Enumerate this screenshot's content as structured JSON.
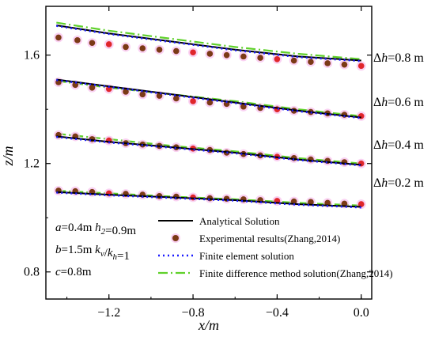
{
  "chart_data": {
    "type": "line",
    "xlabel": "x/m",
    "ylabel": "z/m",
    "xlim": [
      -1.5,
      0.05
    ],
    "ylim": [
      0.7,
      1.78
    ],
    "x_ticks": [
      -1.2,
      -0.8,
      -0.4,
      0.0
    ],
    "x_tick_labels": [
      "−1.2",
      "−0.8",
      "−0.4",
      "0.0"
    ],
    "y_ticks": [
      0.8,
      1.2,
      1.6
    ],
    "y_tick_labels": [
      "0.8",
      "1.2",
      "1.6"
    ],
    "curve_labels": [
      "Δh=0.8 m",
      "Δh=0.6 m",
      "Δh=0.4 m",
      "Δh=0.2 m"
    ],
    "params": [
      "a=0.4m  h2=0.9m",
      "b=1.5m  kv/kh=1",
      "c=0.8m"
    ],
    "legend_position": "bottom-right",
    "series": [
      {
        "name": "Analytical Solution",
        "style": "solid",
        "color": "#000000",
        "curves": [
          {
            "x": [
              -1.45,
              -1.2,
              -0.9,
              -0.6,
              -0.3,
              0.0
            ],
            "y": [
              1.71,
              1.68,
              1.65,
              1.62,
              1.595,
              1.58
            ]
          },
          {
            "x": [
              -1.45,
              -1.2,
              -0.9,
              -0.6,
              -0.3,
              0.0
            ],
            "y": [
              1.51,
              1.485,
              1.455,
              1.425,
              1.395,
              1.37
            ]
          },
          {
            "x": [
              -1.45,
              -1.2,
              -0.9,
              -0.6,
              -0.3,
              0.0
            ],
            "y": [
              1.3,
              1.28,
              1.26,
              1.24,
              1.215,
              1.195
            ]
          },
          {
            "x": [
              -1.45,
              -1.2,
              -0.9,
              -0.6,
              -0.3,
              0.0
            ],
            "y": [
              1.095,
              1.085,
              1.075,
              1.065,
              1.05,
              1.04
            ]
          }
        ]
      },
      {
        "name": "Experimental results(Zhang,2014)",
        "style": "markers",
        "color": "#7b3a16",
        "curves": [
          {
            "x": [
              -1.44,
              -1.35,
              -1.28,
              -1.2,
              -1.12,
              -1.04,
              -0.96,
              -0.88,
              -0.8,
              -0.72,
              -0.64,
              -0.56,
              -0.48,
              -0.4,
              -0.32,
              -0.24,
              -0.16,
              -0.08,
              0.0
            ],
            "y": [
              1.665,
              1.655,
              1.645,
              1.64,
              1.63,
              1.625,
              1.62,
              1.615,
              1.61,
              1.605,
              1.6,
              1.595,
              1.59,
              1.585,
              1.58,
              1.575,
              1.57,
              1.565,
              1.56
            ]
          },
          {
            "x": [
              -1.44,
              -1.36,
              -1.28,
              -1.2,
              -1.12,
              -1.04,
              -0.96,
              -0.88,
              -0.8,
              -0.72,
              -0.64,
              -0.56,
              -0.48,
              -0.4,
              -0.32,
              -0.24,
              -0.16,
              -0.08,
              0.0
            ],
            "y": [
              1.5,
              1.49,
              1.48,
              1.475,
              1.465,
              1.455,
              1.45,
              1.44,
              1.43,
              1.425,
              1.42,
              1.41,
              1.405,
              1.4,
              1.395,
              1.39,
              1.385,
              1.38,
              1.375
            ]
          },
          {
            "x": [
              -1.44,
              -1.36,
              -1.28,
              -1.2,
              -1.12,
              -1.04,
              -0.96,
              -0.88,
              -0.8,
              -0.72,
              -0.64,
              -0.56,
              -0.48,
              -0.4,
              -0.32,
              -0.24,
              -0.16,
              -0.08,
              0.0
            ],
            "y": [
              1.305,
              1.3,
              1.29,
              1.285,
              1.275,
              1.27,
              1.265,
              1.26,
              1.255,
              1.25,
              1.24,
              1.235,
              1.23,
              1.225,
              1.22,
              1.215,
              1.21,
              1.205,
              1.2
            ]
          },
          {
            "x": [
              -1.44,
              -1.36,
              -1.28,
              -1.2,
              -1.12,
              -1.04,
              -0.96,
              -0.88,
              -0.8,
              -0.72,
              -0.64,
              -0.56,
              -0.48,
              -0.4,
              -0.32,
              -0.24,
              -0.16,
              -0.08,
              0.0
            ],
            "y": [
              1.1,
              1.098,
              1.095,
              1.09,
              1.088,
              1.085,
              1.08,
              1.078,
              1.075,
              1.072,
              1.07,
              1.068,
              1.065,
              1.062,
              1.06,
              1.058,
              1.055,
              1.052,
              1.05
            ]
          }
        ]
      },
      {
        "name": "Finite element solution",
        "style": "dotted",
        "color": "#1a1aff",
        "curves": [
          {
            "x": [
              -1.45,
              -1.2,
              -0.9,
              -0.6,
              -0.3,
              0.0
            ],
            "y": [
              1.708,
              1.678,
              1.648,
              1.618,
              1.593,
              1.578
            ]
          },
          {
            "x": [
              -1.45,
              -1.2,
              -0.9,
              -0.6,
              -0.3,
              0.0
            ],
            "y": [
              1.508,
              1.483,
              1.453,
              1.423,
              1.393,
              1.368
            ]
          },
          {
            "x": [
              -1.45,
              -1.2,
              -0.9,
              -0.6,
              -0.3,
              0.0
            ],
            "y": [
              1.298,
              1.278,
              1.258,
              1.238,
              1.213,
              1.193
            ]
          },
          {
            "x": [
              -1.45,
              -1.2,
              -0.9,
              -0.6,
              -0.3,
              0.0
            ],
            "y": [
              1.093,
              1.083,
              1.073,
              1.063,
              1.048,
              1.038
            ]
          }
        ]
      },
      {
        "name": "Finite difference method solution(Zhang,2014)",
        "style": "dashdot",
        "color": "#5fd12a",
        "curves": [
          {
            "x": [
              -1.45,
              -1.2,
              -0.9,
              -0.6,
              -0.3,
              0.0
            ],
            "y": [
              1.72,
              1.69,
              1.66,
              1.63,
              1.605,
              1.585
            ]
          },
          {
            "x": [
              -1.45,
              -1.2,
              -0.9,
              -0.6,
              -0.3,
              0.0
            ],
            "y": [
              1.505,
              1.48,
              1.455,
              1.43,
              1.4,
              1.375
            ]
          },
          {
            "x": [
              -1.45,
              -1.2,
              -0.9,
              -0.6,
              -0.3,
              0.0
            ],
            "y": [
              1.31,
              1.29,
              1.265,
              1.245,
              1.22,
              1.2
            ]
          },
          {
            "x": [
              -1.45,
              -1.2,
              -0.9,
              -0.6,
              -0.3,
              0.0
            ],
            "y": [
              1.1,
              1.09,
              1.078,
              1.068,
              1.055,
              1.045
            ]
          }
        ]
      }
    ]
  }
}
